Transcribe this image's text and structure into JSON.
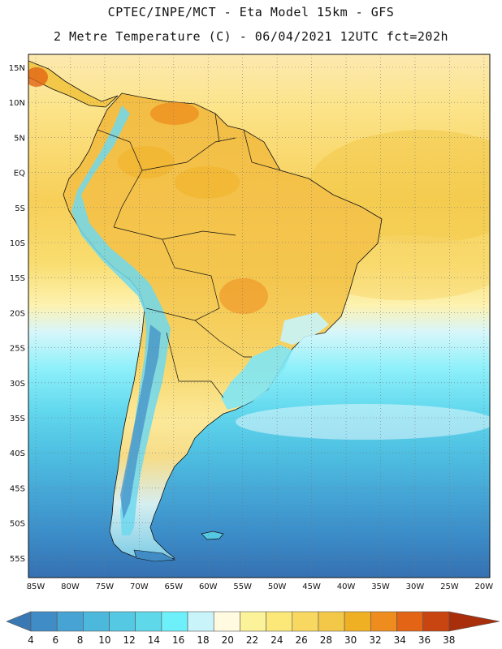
{
  "header": {
    "line1": "CPTEC/INPE/MCT -  Eta Model 15km - GFS",
    "line2": "2 Metre Temperature (C) - 06/04/2021 12UTC fct=202h"
  },
  "axes": {
    "lat_labels": [
      "15N",
      "10N",
      "5N",
      "EQ",
      "5S",
      "10S",
      "15S",
      "20S",
      "25S",
      "30S",
      "35S",
      "40S",
      "45S",
      "50S",
      "55S"
    ],
    "lon_labels": [
      "85W",
      "80W",
      "75W",
      "70W",
      "65W",
      "60W",
      "55W",
      "50W",
      "45W",
      "40W",
      "35W",
      "30W",
      "25W",
      "20W"
    ]
  },
  "colorbar": {
    "ticks": [
      "4",
      "6",
      "8",
      "10",
      "12",
      "14",
      "16",
      "18",
      "20",
      "22",
      "24",
      "26",
      "28",
      "30",
      "32",
      "34",
      "36",
      "38"
    ],
    "colors": [
      "#3a78b4",
      "#3f8cc6",
      "#46a3d4",
      "#4bb8dc",
      "#55c8e4",
      "#5fd8ea",
      "#6ef0fa",
      "#c8f4fa",
      "#fffae0",
      "#fcf29a",
      "#fbe878",
      "#f8d860",
      "#f3c848",
      "#f0b024",
      "#ee8c1e",
      "#e26414",
      "#c84410",
      "#a82e0c"
    ]
  }
}
